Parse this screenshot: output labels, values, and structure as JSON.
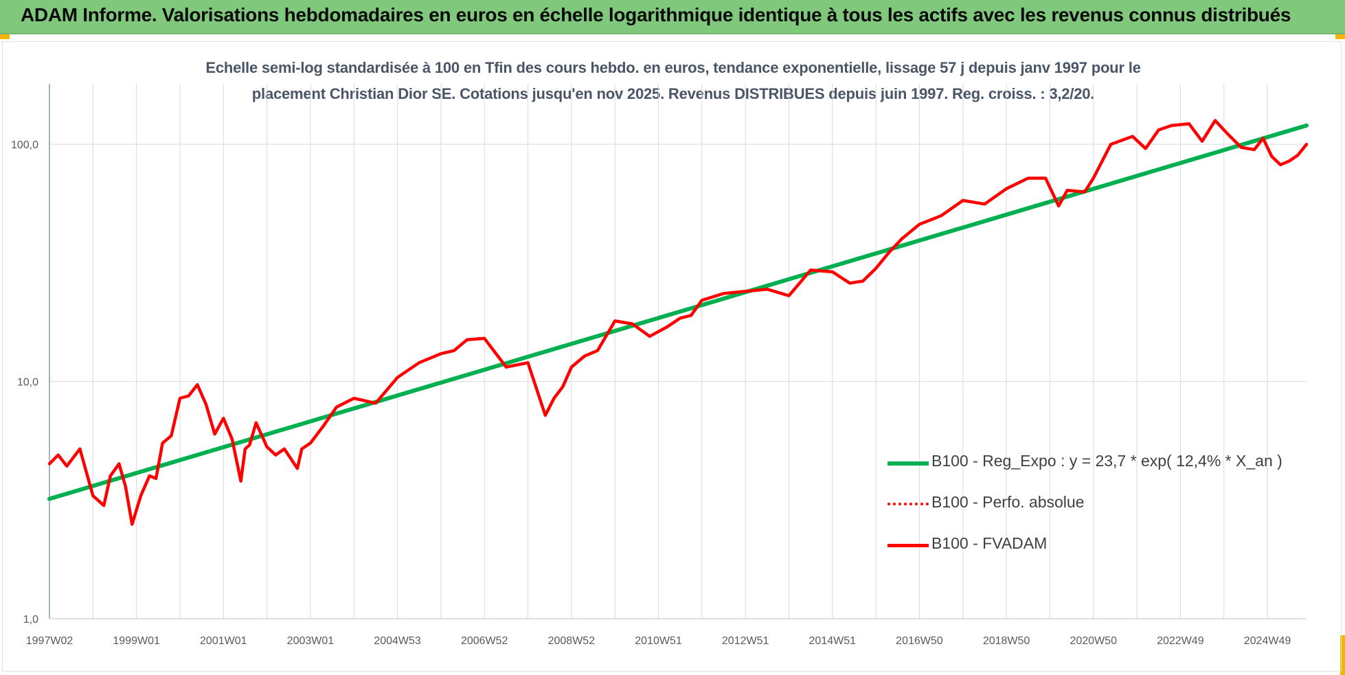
{
  "banner": {
    "title": "ADAM Informe. Valorisations hebdomadaires en euros en échelle logarithmique identique à tous les actifs avec les revenus connus distribués"
  },
  "colors": {
    "banner_bg": "#80c97c",
    "corner_accent": "#f5b400",
    "trend_line": "#00b050",
    "fvadam_line": "#ff0000",
    "grid": "#d9d9d9",
    "axis_text": "#595959"
  },
  "chart_data": {
    "type": "line",
    "title_line1": "Echelle semi-log standardisée à 100 en Tfin des cours hebdo. en euros, tendance exponentielle, lissage 57 j depuis janv 1997 pour le",
    "title_line2": "placement Christian Dior SE. Cotations jusqu'en nov 2025. Revenus DISTRIBUES depuis juin 1997. Reg. croiss. : 3,2/20.",
    "y_scale": "log",
    "ylim": [
      1,
      180
    ],
    "y_ticks": [
      1,
      10,
      100
    ],
    "y_tick_labels": [
      "1,0",
      "10,0",
      "100,0"
    ],
    "xlim": [
      1997.0,
      2025.9
    ],
    "x_ticks": [
      1997.0,
      1999.0,
      2001.0,
      2003.0,
      2005.0,
      2007.0,
      2009.0,
      2011.0,
      2013.0,
      2015.0,
      2017.0,
      2019.0,
      2021.0,
      2023.0,
      2025.0
    ],
    "x_tick_labels": [
      "1997W02",
      "1999W01",
      "2001W01",
      "2003W01",
      "2004W53",
      "2006W52",
      "2008W52",
      "2010W51",
      "2012W51",
      "2014W51",
      "2016W50",
      "2018W50",
      "2020W50",
      "2022W49",
      "2024W49"
    ],
    "grid": "vertical and horizontal",
    "legend_position": "bottom-right",
    "series": [
      {
        "name": "B100 - Reg_Expo : y = 23,7 * exp( 12,4% *  X_an )",
        "style": "solid-green",
        "x": [
          1997.0,
          2025.9
        ],
        "y": [
          3.2,
          120.0
        ]
      },
      {
        "name": "B100 - Perfo. absolue",
        "style": "dotted-red",
        "x": [],
        "y": []
      },
      {
        "name": "B100 - FVADAM",
        "style": "solid-red",
        "x": [
          1997.0,
          1997.2,
          1997.4,
          1997.7,
          1998.0,
          1998.25,
          1998.4,
          1998.6,
          1998.75,
          1998.9,
          1999.1,
          1999.3,
          1999.45,
          1999.6,
          1999.8,
          2000.0,
          2000.2,
          2000.4,
          2000.6,
          2000.8,
          2001.0,
          2001.2,
          2001.4,
          2001.5,
          2001.6,
          2001.75,
          2002.0,
          2002.2,
          2002.4,
          2002.7,
          2002.8,
          2003.0,
          2003.3,
          2003.6,
          2004.0,
          2004.5,
          2005.0,
          2005.5,
          2006.0,
          2006.3,
          2006.6,
          2007.0,
          2007.5,
          2008.0,
          2008.4,
          2008.6,
          2008.8,
          2009.0,
          2009.3,
          2009.6,
          2010.0,
          2010.4,
          2010.8,
          2011.2,
          2011.5,
          2011.75,
          2012.0,
          2012.5,
          2013.0,
          2013.5,
          2014.0,
          2014.5,
          2015.0,
          2015.4,
          2015.7,
          2016.0,
          2016.3,
          2016.6,
          2017.0,
          2017.5,
          2018.0,
          2018.5,
          2019.0,
          2019.5,
          2019.9,
          2020.2,
          2020.4,
          2020.8,
          2021.0,
          2021.4,
          2021.9,
          2022.2,
          2022.5,
          2022.8,
          2023.2,
          2023.5,
          2023.8,
          2024.1,
          2024.4,
          2024.7,
          2024.9,
          2025.1,
          2025.3,
          2025.5,
          2025.7,
          2025.9
        ],
        "y": [
          4.5,
          4.9,
          4.4,
          5.2,
          3.3,
          3.0,
          4.0,
          4.5,
          3.6,
          2.5,
          3.3,
          4.0,
          3.9,
          5.5,
          5.9,
          8.5,
          8.7,
          9.7,
          8.0,
          6.0,
          7.0,
          5.7,
          3.8,
          5.2,
          5.4,
          6.7,
          5.3,
          4.9,
          5.2,
          4.3,
          5.2,
          5.5,
          6.5,
          7.8,
          8.5,
          8.1,
          10.4,
          12.0,
          13.1,
          13.5,
          15.0,
          15.2,
          11.5,
          12.0,
          7.2,
          8.5,
          9.5,
          11.5,
          12.8,
          13.5,
          18.0,
          17.5,
          15.5,
          17.0,
          18.5,
          19.0,
          22.0,
          23.5,
          24.0,
          24.5,
          23.0,
          29.5,
          29.0,
          26.0,
          26.5,
          30.0,
          35.0,
          40.0,
          46.0,
          50.0,
          58.0,
          56.0,
          65.0,
          72.0,
          72.0,
          55.0,
          64.0,
          63.0,
          72.0,
          100.0,
          108.0,
          96.0,
          115.0,
          120.0,
          122.0,
          103.0,
          126.0,
          110.0,
          97.0,
          95.0,
          106.0,
          89.0,
          82.0,
          85.0,
          90.0,
          100.0
        ]
      }
    ]
  }
}
